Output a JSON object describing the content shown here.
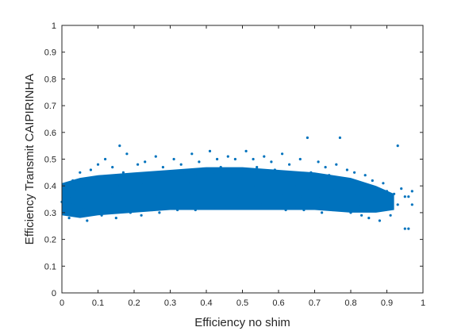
{
  "chart_data": {
    "type": "scatter",
    "xlabel": "Efficiency no shim",
    "ylabel": "Efficiency Transmit CAIPIRINHA",
    "xlim": [
      0,
      1
    ],
    "ylim": [
      0,
      1
    ],
    "x_ticks": [
      "0",
      "0.1",
      "0.2",
      "0.3",
      "0.4",
      "0.5",
      "0.6",
      "0.7",
      "0.8",
      "0.9",
      "1"
    ],
    "y_ticks": [
      "0",
      "0.1",
      "0.2",
      "0.3",
      "0.4",
      "0.5",
      "0.6",
      "0.7",
      "0.8",
      "0.9",
      "1"
    ],
    "grid": false,
    "marker_color": "#0072BD",
    "series": [
      {
        "name": "",
        "description_note": "",
        "points": [
          [
            0.0,
            0.34
          ],
          [
            0.01,
            0.3
          ],
          [
            0.01,
            0.4
          ],
          [
            0.02,
            0.36
          ],
          [
            0.02,
            0.28
          ],
          [
            0.03,
            0.33
          ],
          [
            0.03,
            0.42
          ],
          [
            0.04,
            0.38
          ],
          [
            0.04,
            0.29
          ],
          [
            0.05,
            0.35
          ],
          [
            0.05,
            0.45
          ],
          [
            0.06,
            0.32
          ],
          [
            0.06,
            0.4
          ],
          [
            0.07,
            0.27
          ],
          [
            0.07,
            0.37
          ],
          [
            0.08,
            0.34
          ],
          [
            0.08,
            0.46
          ],
          [
            0.09,
            0.3
          ],
          [
            0.09,
            0.41
          ],
          [
            0.1,
            0.36
          ],
          [
            0.1,
            0.48
          ],
          [
            0.11,
            0.29
          ],
          [
            0.11,
            0.38
          ],
          [
            0.12,
            0.33
          ],
          [
            0.12,
            0.5
          ],
          [
            0.13,
            0.42
          ],
          [
            0.13,
            0.31
          ],
          [
            0.14,
            0.37
          ],
          [
            0.14,
            0.47
          ],
          [
            0.15,
            0.34
          ],
          [
            0.15,
            0.28
          ],
          [
            0.16,
            0.55
          ],
          [
            0.16,
            0.4
          ],
          [
            0.17,
            0.36
          ],
          [
            0.17,
            0.45
          ],
          [
            0.18,
            0.32
          ],
          [
            0.18,
            0.52
          ],
          [
            0.19,
            0.39
          ],
          [
            0.19,
            0.3
          ],
          [
            0.2,
            0.43
          ],
          [
            0.2,
            0.35
          ],
          [
            0.21,
            0.48
          ],
          [
            0.21,
            0.33
          ],
          [
            0.22,
            0.41
          ],
          [
            0.22,
            0.29
          ],
          [
            0.23,
            0.37
          ],
          [
            0.23,
            0.49
          ],
          [
            0.24,
            0.34
          ],
          [
            0.24,
            0.44
          ],
          [
            0.25,
            0.31
          ],
          [
            0.25,
            0.39
          ],
          [
            0.26,
            0.51
          ],
          [
            0.26,
            0.36
          ],
          [
            0.27,
            0.42
          ],
          [
            0.27,
            0.3
          ],
          [
            0.28,
            0.38
          ],
          [
            0.28,
            0.47
          ],
          [
            0.29,
            0.34
          ],
          [
            0.29,
            0.44
          ],
          [
            0.3,
            0.32
          ],
          [
            0.3,
            0.4
          ],
          [
            0.31,
            0.5
          ],
          [
            0.31,
            0.36
          ],
          [
            0.32,
            0.43
          ],
          [
            0.32,
            0.31
          ],
          [
            0.33,
            0.39
          ],
          [
            0.33,
            0.48
          ],
          [
            0.34,
            0.35
          ],
          [
            0.34,
            0.45
          ],
          [
            0.35,
            0.32
          ],
          [
            0.35,
            0.41
          ],
          [
            0.36,
            0.52
          ],
          [
            0.36,
            0.37
          ],
          [
            0.37,
            0.44
          ],
          [
            0.37,
            0.31
          ],
          [
            0.38,
            0.4
          ],
          [
            0.38,
            0.49
          ],
          [
            0.39,
            0.35
          ],
          [
            0.39,
            0.46
          ],
          [
            0.4,
            0.32
          ],
          [
            0.4,
            0.42
          ],
          [
            0.41,
            0.53
          ],
          [
            0.41,
            0.37
          ],
          [
            0.42,
            0.45
          ],
          [
            0.42,
            0.32
          ],
          [
            0.43,
            0.4
          ],
          [
            0.43,
            0.5
          ],
          [
            0.44,
            0.36
          ],
          [
            0.44,
            0.47
          ],
          [
            0.45,
            0.33
          ],
          [
            0.45,
            0.42
          ],
          [
            0.46,
            0.51
          ],
          [
            0.46,
            0.38
          ],
          [
            0.47,
            0.45
          ],
          [
            0.47,
            0.32
          ],
          [
            0.48,
            0.41
          ],
          [
            0.48,
            0.5
          ],
          [
            0.49,
            0.36
          ],
          [
            0.49,
            0.46
          ],
          [
            0.5,
            0.33
          ],
          [
            0.5,
            0.42
          ],
          [
            0.51,
            0.53
          ],
          [
            0.51,
            0.38
          ],
          [
            0.52,
            0.45
          ],
          [
            0.52,
            0.32
          ],
          [
            0.53,
            0.4
          ],
          [
            0.53,
            0.5
          ],
          [
            0.54,
            0.36
          ],
          [
            0.54,
            0.47
          ],
          [
            0.55,
            0.33
          ],
          [
            0.55,
            0.42
          ],
          [
            0.56,
            0.51
          ],
          [
            0.56,
            0.37
          ],
          [
            0.57,
            0.44
          ],
          [
            0.57,
            0.32
          ],
          [
            0.58,
            0.4
          ],
          [
            0.58,
            0.49
          ],
          [
            0.59,
            0.35
          ],
          [
            0.59,
            0.46
          ],
          [
            0.6,
            0.32
          ],
          [
            0.6,
            0.41
          ],
          [
            0.61,
            0.52
          ],
          [
            0.61,
            0.37
          ],
          [
            0.62,
            0.44
          ],
          [
            0.62,
            0.31
          ],
          [
            0.63,
            0.39
          ],
          [
            0.63,
            0.48
          ],
          [
            0.64,
            0.35
          ],
          [
            0.64,
            0.45
          ],
          [
            0.65,
            0.32
          ],
          [
            0.65,
            0.4
          ],
          [
            0.66,
            0.5
          ],
          [
            0.66,
            0.36
          ],
          [
            0.67,
            0.43
          ],
          [
            0.67,
            0.31
          ],
          [
            0.68,
            0.39
          ],
          [
            0.68,
            0.58
          ],
          [
            0.69,
            0.35
          ],
          [
            0.69,
            0.45
          ],
          [
            0.7,
            0.32
          ],
          [
            0.7,
            0.4
          ],
          [
            0.71,
            0.49
          ],
          [
            0.71,
            0.36
          ],
          [
            0.72,
            0.43
          ],
          [
            0.72,
            0.3
          ],
          [
            0.73,
            0.38
          ],
          [
            0.73,
            0.47
          ],
          [
            0.74,
            0.34
          ],
          [
            0.74,
            0.44
          ],
          [
            0.75,
            0.31
          ],
          [
            0.75,
            0.39
          ],
          [
            0.76,
            0.48
          ],
          [
            0.76,
            0.35
          ],
          [
            0.77,
            0.58
          ],
          [
            0.77,
            0.42
          ],
          [
            0.78,
            0.32
          ],
          [
            0.78,
            0.38
          ],
          [
            0.79,
            0.46
          ],
          [
            0.79,
            0.34
          ],
          [
            0.8,
            0.41
          ],
          [
            0.8,
            0.3
          ],
          [
            0.81,
            0.37
          ],
          [
            0.81,
            0.45
          ],
          [
            0.82,
            0.33
          ],
          [
            0.82,
            0.4
          ],
          [
            0.83,
            0.29
          ],
          [
            0.83,
            0.36
          ],
          [
            0.84,
            0.44
          ],
          [
            0.84,
            0.32
          ],
          [
            0.85,
            0.39
          ],
          [
            0.85,
            0.28
          ],
          [
            0.86,
            0.35
          ],
          [
            0.86,
            0.42
          ],
          [
            0.87,
            0.31
          ],
          [
            0.87,
            0.38
          ],
          [
            0.88,
            0.34
          ],
          [
            0.88,
            0.27
          ],
          [
            0.89,
            0.36
          ],
          [
            0.89,
            0.41
          ],
          [
            0.9,
            0.32
          ],
          [
            0.9,
            0.38
          ],
          [
            0.91,
            0.35
          ],
          [
            0.91,
            0.29
          ],
          [
            0.92,
            0.37
          ],
          [
            0.93,
            0.55
          ],
          [
            0.93,
            0.33
          ],
          [
            0.94,
            0.39
          ],
          [
            0.95,
            0.36
          ],
          [
            0.95,
            0.24
          ],
          [
            0.96,
            0.24
          ],
          [
            0.96,
            0.36
          ],
          [
            0.97,
            0.38
          ],
          [
            0.97,
            0.33
          ]
        ]
      }
    ]
  }
}
